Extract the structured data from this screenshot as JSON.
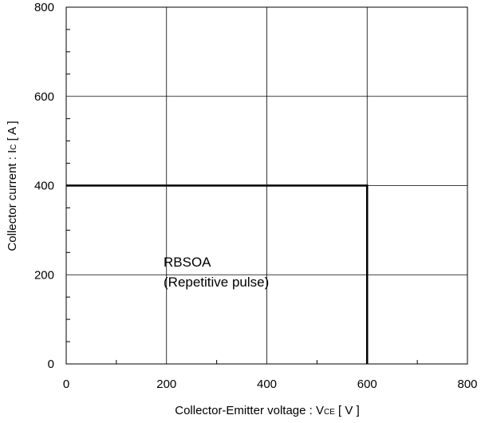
{
  "chart_data": {
    "type": "line",
    "xlabel": {
      "main": "Collector-Emitter voltage  :  V",
      "sub": "CE",
      "unit": " [ V ]"
    },
    "ylabel": {
      "main": "Collector current : I",
      "sub": "C",
      "unit": " [ A ]"
    },
    "xlim": [
      0,
      800
    ],
    "ylim": [
      0,
      800
    ],
    "xticks": [
      0,
      200,
      400,
      600,
      800
    ],
    "yticks": [
      0,
      200,
      400,
      600,
      800
    ],
    "grid": true,
    "series": [
      {
        "x": [
          0,
          600,
          600
        ],
        "y": [
          400,
          400,
          0
        ],
        "color": "#000000"
      }
    ],
    "annotations": {
      "line1": "RBSOA",
      "line2": "(Repetitive pulse)"
    }
  }
}
